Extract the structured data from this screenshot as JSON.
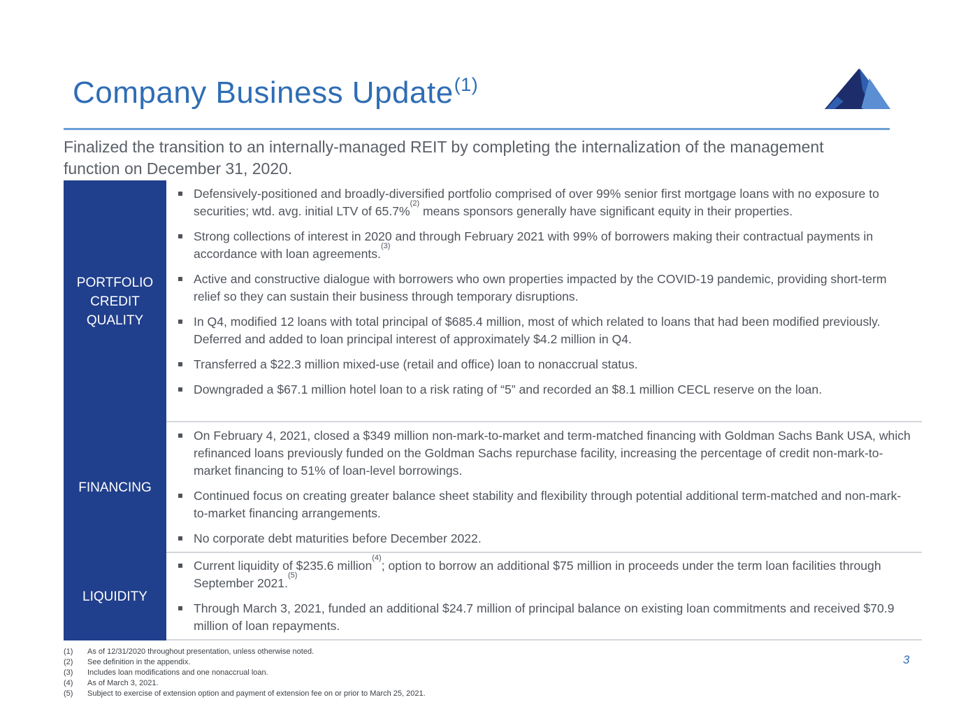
{
  "header": {
    "title": "Company Business Update",
    "title_sup": "(1)"
  },
  "logo": {
    "icon": "mountain-logo-icon",
    "colors": [
      "#1d2d6b",
      "#2f5fb0",
      "#5b8fd3"
    ]
  },
  "intro": "Finalized the transition to an internally-managed REIT by completing the internalization of the management function on December 31, 2020.",
  "sections": [
    {
      "label_lines": [
        "PORTFOLIO",
        "CREDIT",
        "QUALITY"
      ],
      "bullets": [
        {
          "parts": [
            {
              "t": "Defensively-positioned and broadly-diversified portfolio comprised of over 99% senior first mortgage loans with no exposure to securities; wtd. avg. initial LTV of 65.7%"
            },
            {
              "sup": "(2)"
            },
            {
              "t": " means sponsors generally have significant equity in their properties."
            }
          ]
        },
        {
          "parts": [
            {
              "t": "Strong collections of interest in 2020 and through February 2021 with 99% of borrowers making their contractual payments in accordance with loan agreements."
            },
            {
              "sup": "(3)"
            }
          ]
        },
        {
          "parts": [
            {
              "t": "Active and constructive dialogue with borrowers who own properties impacted by the COVID-19 pandemic, providing short-term relief so they can sustain their business through temporary disruptions."
            }
          ]
        },
        {
          "parts": [
            {
              "t": "In Q4, modified 12 loans with total principal of $685.4 million, most of which related to loans that had been modified previously.  Deferred and added to loan principal interest of approximately $4.2 million in Q4."
            }
          ]
        },
        {
          "parts": [
            {
              "t": "Transferred a $22.3 million mixed-use (retail and office) loan to nonaccrual status."
            }
          ]
        },
        {
          "parts": [
            {
              "t": "Downgraded a $67.1 million hotel loan to a risk rating of “5” and recorded an $8.1 million CECL reserve on the loan."
            }
          ]
        }
      ]
    },
    {
      "label_lines": [
        "FINANCING"
      ],
      "bullets": [
        {
          "parts": [
            {
              "t": "On February 4, 2021, closed a $349 million non-mark-to-market and term-matched financing with Goldman Sachs Bank USA, which refinanced loans previously funded on the Goldman Sachs repurchase facility, increasing the percentage of credit non-mark-to-market financing to 51% of loan-level borrowings."
            }
          ]
        },
        {
          "parts": [
            {
              "t": "Continued focus on creating greater balance sheet stability and flexibility through potential additional term-matched and non-mark-to-market financing arrangements."
            }
          ]
        },
        {
          "parts": [
            {
              "t": "No corporate debt maturities before December 2022."
            }
          ]
        }
      ]
    },
    {
      "label_lines": [
        "LIQUIDITY"
      ],
      "bullets": [
        {
          "parts": [
            {
              "t": "Current liquidity of $235.6 million"
            },
            {
              "sup": "(4)"
            },
            {
              "t": "; option to borrow an additional $75 million in proceeds under the term loan facilities through September 2021."
            },
            {
              "sup": "(5)"
            }
          ]
        },
        {
          "parts": [
            {
              "t": "Through March 3, 2021, funded an additional $24.7 million of principal balance on existing loan commitments and received $70.9 million of loan repayments."
            }
          ]
        }
      ]
    }
  ],
  "footnotes": [
    {
      "num": "(1)",
      "text": "As of 12/31/2020 throughout presentation, unless otherwise noted."
    },
    {
      "num": "(2)",
      "text": "See definition in the appendix."
    },
    {
      "num": "(3)",
      "text": "Includes loan modifications and one nonaccrual loan."
    },
    {
      "num": "(4)",
      "text": "As of March 3, 2021."
    },
    {
      "num": "(5)",
      "text": "Subject to exercise of extension option and payment of extension fee on or prior to March 25, 2021."
    }
  ],
  "page_number": "3"
}
